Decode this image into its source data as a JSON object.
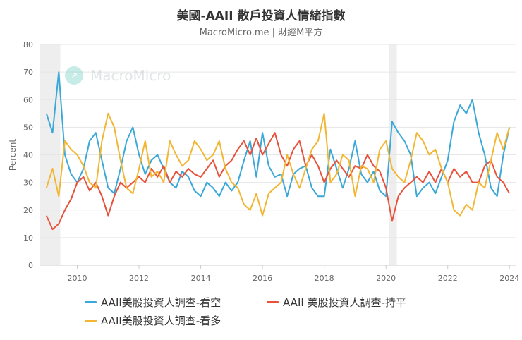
{
  "header": {
    "title": "美國-AAII 散戶投資人情緒指數",
    "subtitle": "MacroMicro.me | 財經M平方"
  },
  "watermark": {
    "text": "MacroMicro",
    "icon": "chart-logo-icon"
  },
  "colors": {
    "bearish": "#3aa8d8",
    "neutral": "#e8513a",
    "bullish": "#f2b632",
    "recession": "#eeeeee",
    "grid": "#e6e6e6"
  },
  "chart_data": {
    "type": "line",
    "ylabel": "Percent",
    "ylim": [
      0,
      80
    ],
    "xlim": [
      2008.8,
      2024.2
    ],
    "yticks": [
      0,
      10,
      20,
      30,
      40,
      50,
      60,
      70,
      80
    ],
    "xticks": [
      2010,
      2012,
      2014,
      2016,
      2018,
      2020,
      2022,
      2024
    ],
    "recession_bands": [
      [
        2008.8,
        2009.45
      ],
      [
        2020.1,
        2020.35
      ]
    ],
    "series": [
      {
        "name": "AAII美股投資人調查-看空",
        "color": "#3aa8d8",
        "x": [
          2009.0,
          2009.2,
          2009.4,
          2009.6,
          2009.8,
          2010.0,
          2010.2,
          2010.4,
          2010.6,
          2010.8,
          2011.0,
          2011.2,
          2011.4,
          2011.6,
          2011.8,
          2012.0,
          2012.2,
          2012.4,
          2012.6,
          2012.8,
          2013.0,
          2013.2,
          2013.4,
          2013.6,
          2013.8,
          2014.0,
          2014.2,
          2014.4,
          2014.6,
          2014.8,
          2015.0,
          2015.2,
          2015.4,
          2015.6,
          2015.8,
          2016.0,
          2016.2,
          2016.4,
          2016.6,
          2016.8,
          2017.0,
          2017.2,
          2017.4,
          2017.6,
          2017.8,
          2018.0,
          2018.2,
          2018.4,
          2018.6,
          2018.8,
          2019.0,
          2019.2,
          2019.4,
          2019.6,
          2019.8,
          2020.0,
          2020.2,
          2020.4,
          2020.6,
          2020.8,
          2021.0,
          2021.2,
          2021.4,
          2021.6,
          2021.8,
          2022.0,
          2022.2,
          2022.4,
          2022.6,
          2022.8,
          2023.0,
          2023.2,
          2023.4,
          2023.6,
          2023.8,
          2024.0
        ],
        "values": [
          55,
          48,
          70,
          40,
          33,
          30,
          35,
          45,
          48,
          38,
          28,
          26,
          35,
          45,
          50,
          40,
          33,
          38,
          40,
          35,
          30,
          28,
          34,
          32,
          27,
          25,
          30,
          28,
          25,
          30,
          27,
          30,
          38,
          45,
          32,
          48,
          36,
          32,
          33,
          25,
          33,
          35,
          36,
          28,
          25,
          25,
          42,
          35,
          28,
          35,
          45,
          33,
          30,
          34,
          27,
          25,
          52,
          48,
          45,
          40,
          25,
          28,
          30,
          26,
          32,
          38,
          52,
          58,
          55,
          60,
          48,
          40,
          28,
          25,
          40,
          50
        ]
      },
      {
        "name": "AAII 美股投資人調查-持平",
        "color": "#e8513a",
        "x": [
          2009.0,
          2009.2,
          2009.4,
          2009.6,
          2009.8,
          2010.0,
          2010.2,
          2010.4,
          2010.6,
          2010.8,
          2011.0,
          2011.2,
          2011.4,
          2011.6,
          2011.8,
          2012.0,
          2012.2,
          2012.4,
          2012.6,
          2012.8,
          2013.0,
          2013.2,
          2013.4,
          2013.6,
          2013.8,
          2014.0,
          2014.2,
          2014.4,
          2014.6,
          2014.8,
          2015.0,
          2015.2,
          2015.4,
          2015.6,
          2015.8,
          2016.0,
          2016.2,
          2016.4,
          2016.6,
          2016.8,
          2017.0,
          2017.2,
          2017.4,
          2017.6,
          2017.8,
          2018.0,
          2018.2,
          2018.4,
          2018.6,
          2018.8,
          2019.0,
          2019.2,
          2019.4,
          2019.6,
          2019.8,
          2020.0,
          2020.2,
          2020.4,
          2020.6,
          2020.8,
          2021.0,
          2021.2,
          2021.4,
          2021.6,
          2021.8,
          2022.0,
          2022.2,
          2022.4,
          2022.6,
          2022.8,
          2023.0,
          2023.2,
          2023.4,
          2023.6,
          2023.8,
          2024.0
        ],
        "values": [
          18,
          13,
          15,
          20,
          24,
          30,
          32,
          27,
          30,
          25,
          18,
          25,
          30,
          28,
          30,
          32,
          30,
          35,
          32,
          36,
          30,
          34,
          32,
          35,
          33,
          32,
          35,
          38,
          32,
          36,
          38,
          42,
          45,
          40,
          46,
          40,
          44,
          48,
          40,
          36,
          42,
          45,
          36,
          40,
          36,
          30,
          35,
          38,
          35,
          32,
          36,
          35,
          40,
          36,
          34,
          28,
          16,
          25,
          28,
          30,
          32,
          30,
          34,
          30,
          35,
          30,
          35,
          32,
          34,
          30,
          30,
          36,
          38,
          32,
          30,
          26
        ]
      },
      {
        "name": "AAII美股投資人調查-看多",
        "color": "#f2b632",
        "x": [
          2009.0,
          2009.2,
          2009.4,
          2009.6,
          2009.8,
          2010.0,
          2010.2,
          2010.4,
          2010.6,
          2010.8,
          2011.0,
          2011.2,
          2011.4,
          2011.6,
          2011.8,
          2012.0,
          2012.2,
          2012.4,
          2012.6,
          2012.8,
          2013.0,
          2013.2,
          2013.4,
          2013.6,
          2013.8,
          2014.0,
          2014.2,
          2014.4,
          2014.6,
          2014.8,
          2015.0,
          2015.2,
          2015.4,
          2015.6,
          2015.8,
          2016.0,
          2016.2,
          2016.4,
          2016.6,
          2016.8,
          2017.0,
          2017.2,
          2017.4,
          2017.6,
          2017.8,
          2018.0,
          2018.2,
          2018.4,
          2018.6,
          2018.8,
          2019.0,
          2019.2,
          2019.4,
          2019.6,
          2019.8,
          2020.0,
          2020.2,
          2020.4,
          2020.6,
          2020.8,
          2021.0,
          2021.2,
          2021.4,
          2021.6,
          2021.8,
          2022.0,
          2022.2,
          2022.4,
          2022.6,
          2022.8,
          2023.0,
          2023.2,
          2023.4,
          2023.6,
          2023.8,
          2024.0
        ],
        "values": [
          28,
          35,
          25,
          45,
          42,
          40,
          36,
          30,
          28,
          45,
          55,
          50,
          38,
          28,
          26,
          35,
          45,
          32,
          34,
          30,
          45,
          40,
          36,
          38,
          45,
          42,
          38,
          40,
          45,
          35,
          30,
          28,
          22,
          20,
          26,
          18,
          26,
          28,
          30,
          40,
          33,
          28,
          35,
          42,
          45,
          55,
          30,
          33,
          40,
          38,
          25,
          36,
          35,
          30,
          42,
          45,
          35,
          32,
          30,
          38,
          48,
          45,
          40,
          42,
          35,
          30,
          20,
          18,
          22,
          20,
          30,
          28,
          38,
          48,
          42,
          50
        ]
      }
    ]
  },
  "legend": [
    {
      "label": "AAII美股投資人調查-看空",
      "color": "#3aa8d8"
    },
    {
      "label": "AAII 美股投資人調查-持平",
      "color": "#e8513a"
    },
    {
      "label": "AAII美股投資人調查-看多",
      "color": "#f2b632"
    }
  ]
}
